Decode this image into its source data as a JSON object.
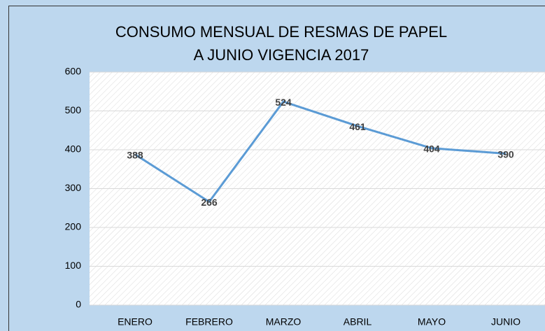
{
  "chart_data": {
    "type": "line",
    "title": [
      "CONSUMO MENSUAL DE RESMAS DE PAPEL",
      "A JUNIO VIGENCIA 2017"
    ],
    "categories": [
      "ENERO",
      "FEBRERO",
      "MARZO",
      "ABRIL",
      "MAYO",
      "JUNIO"
    ],
    "series": [
      {
        "name": "Consumo",
        "color": "#5b9bd5",
        "values": [
          388,
          266,
          524,
          461,
          404,
          390
        ]
      }
    ],
    "ylim": [
      0,
      600
    ],
    "yticks": [
      0,
      100,
      200,
      300,
      400,
      500,
      600
    ],
    "grid": true
  }
}
